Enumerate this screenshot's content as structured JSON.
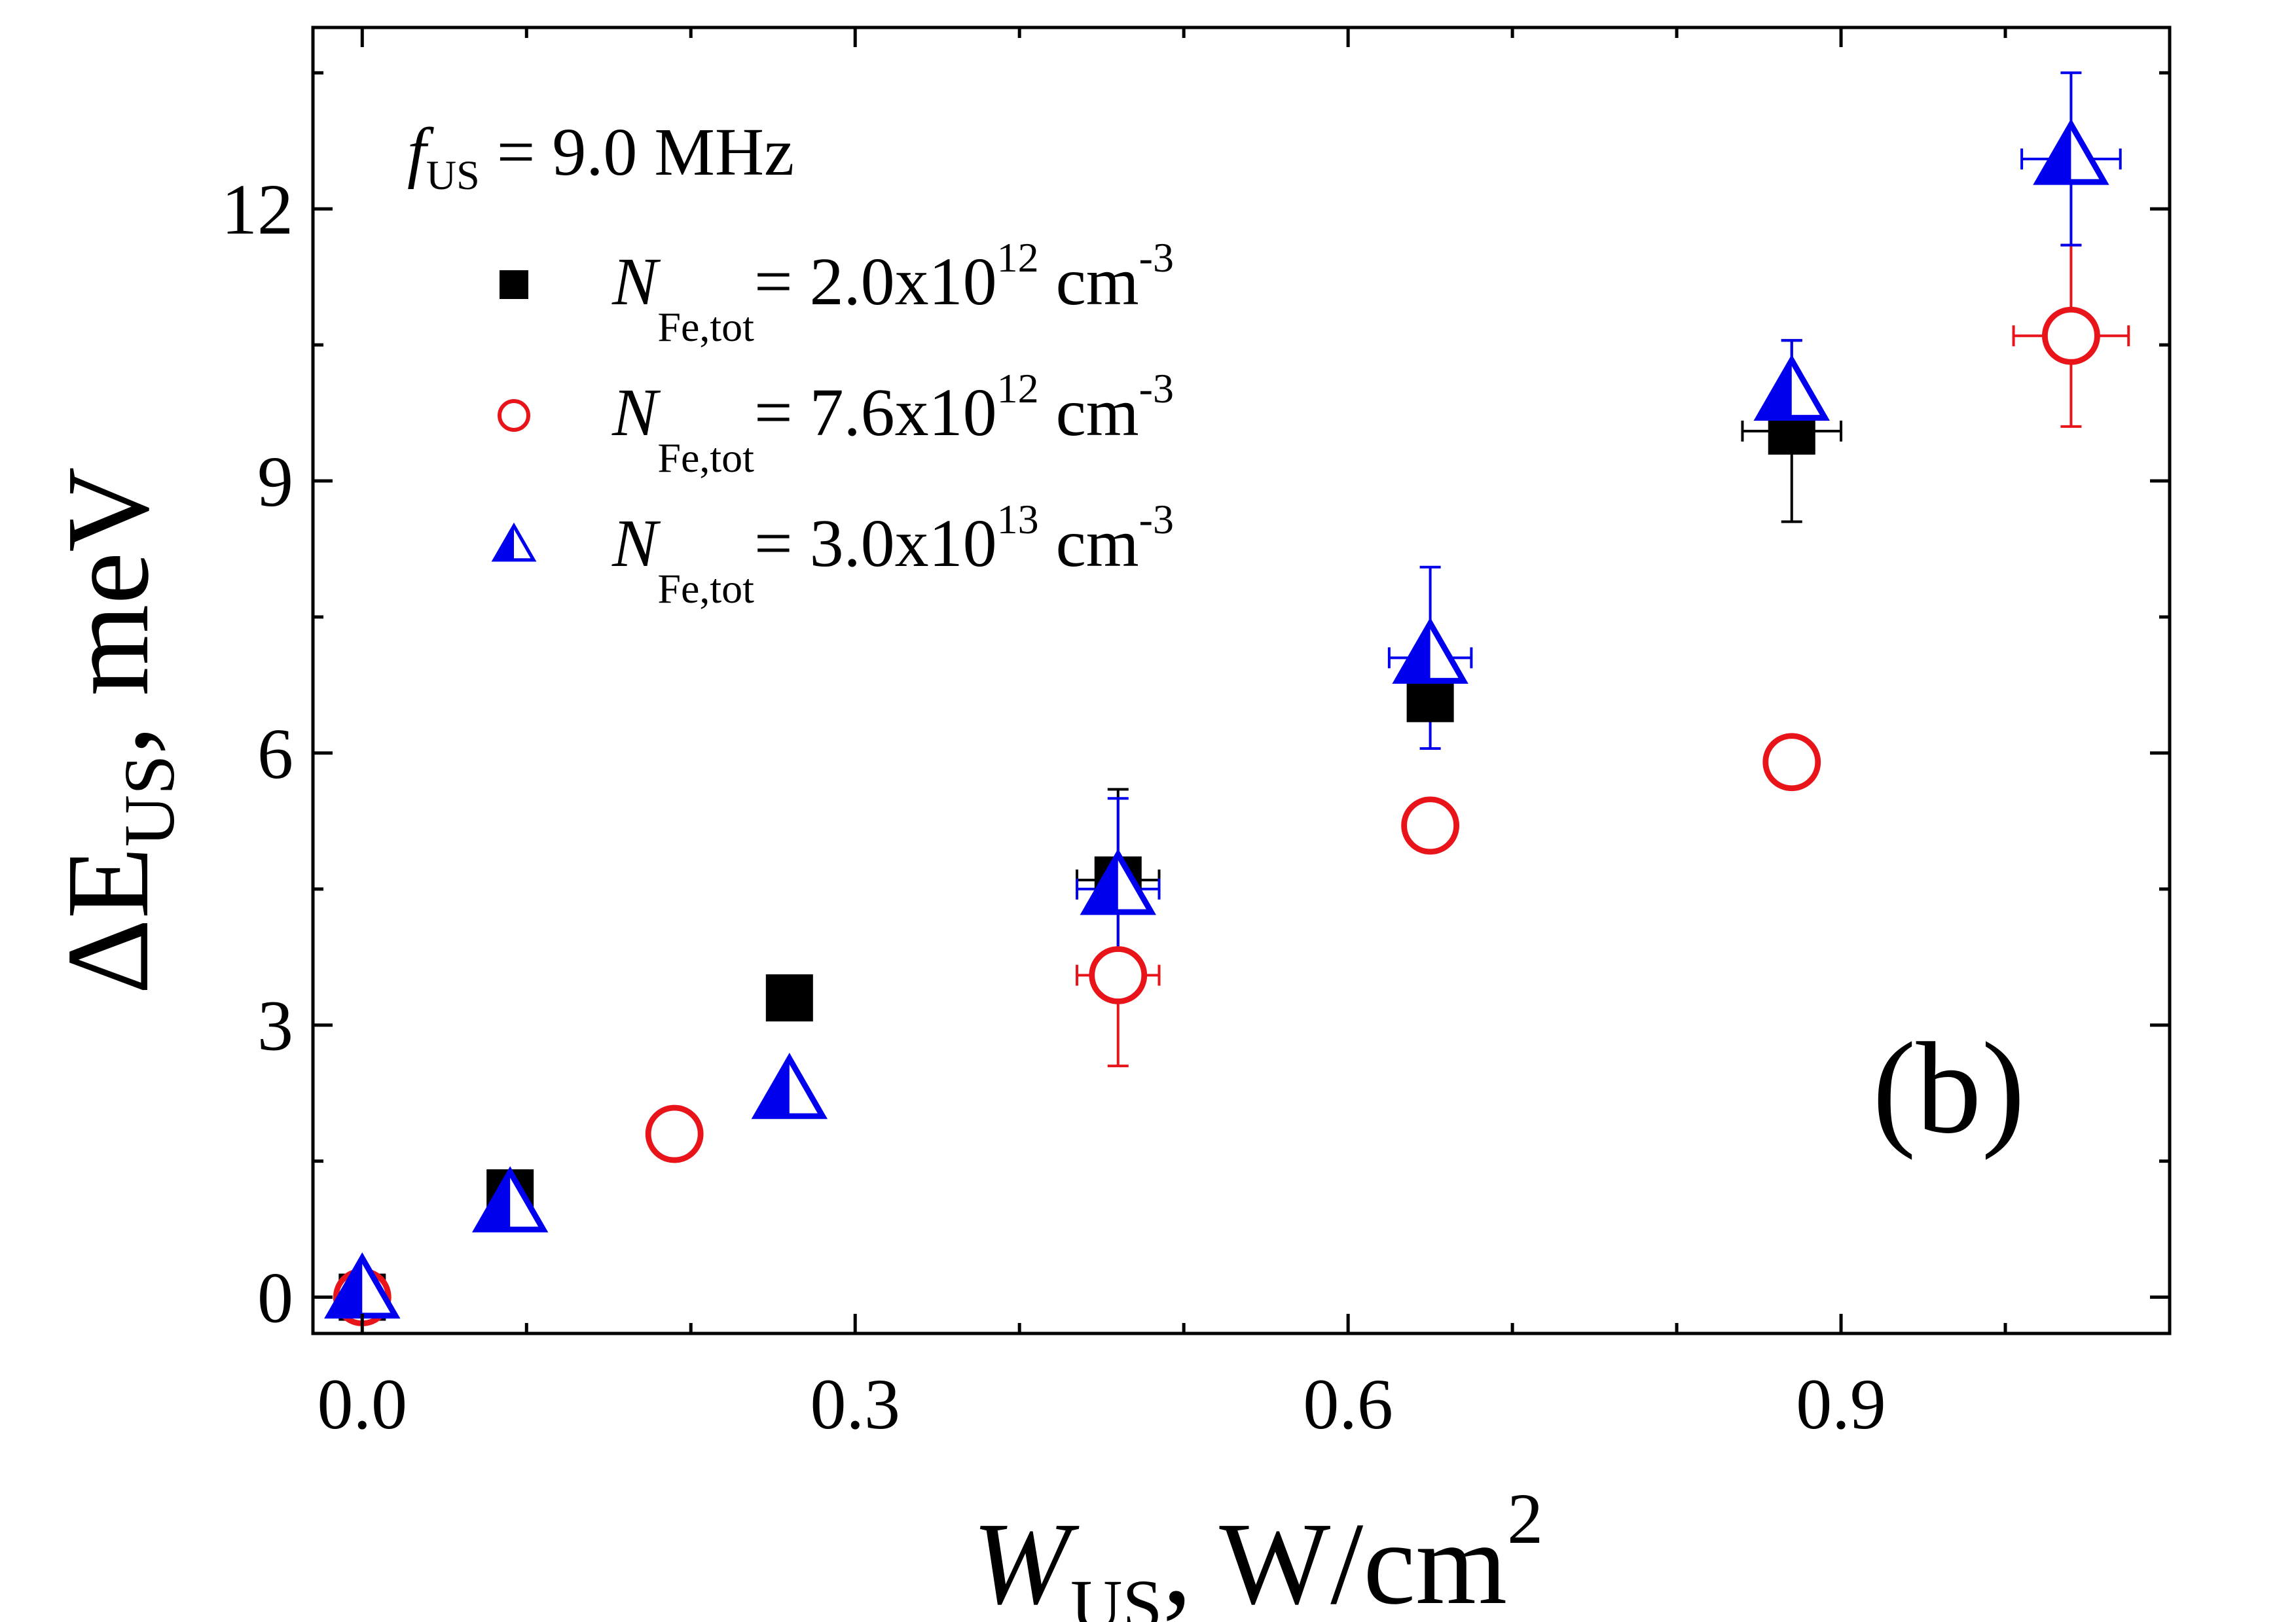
{
  "chart_data": {
    "type": "scatter",
    "panel_label": "(b)",
    "xlabel": {
      "main": "W",
      "sub": "US",
      "tail": ", W/cm",
      "sup": "2"
    },
    "ylabel": {
      "main": "ΔE",
      "sub": "US",
      "tail": ", meV"
    },
    "xlim": [
      -0.03,
      1.1
    ],
    "ylim": [
      -0.4,
      14.0
    ],
    "xticks": [
      0.0,
      0.3,
      0.6,
      0.9
    ],
    "xtick_labels": [
      "0.0",
      "0.3",
      "0.6",
      "0.9"
    ],
    "xminor": [
      0.1,
      0.2,
      0.4,
      0.5,
      0.7,
      0.8,
      1.0
    ],
    "yticks": [
      0,
      3,
      6,
      9,
      12
    ],
    "ytick_labels": [
      "0",
      "3",
      "6",
      "9",
      "12"
    ],
    "yminor": [
      1.5,
      4.5,
      7.5,
      10.5,
      13.5
    ],
    "grid": false,
    "legend_position": "top-left",
    "legend_header": {
      "main": "f",
      "sub": "US",
      "tail": " = 9.0 MHz"
    },
    "series": [
      {
        "name": {
          "main": "N",
          "sub": "Fe,tot",
          "tail": "= 2.0x10",
          "sup": "12",
          "unit": " cm",
          "unit_sup": "-3"
        },
        "marker": "square",
        "color": "#000000",
        "points": [
          {
            "x": 0.0,
            "y": 0.0
          },
          {
            "x": 0.09,
            "y": 1.15
          },
          {
            "x": 0.26,
            "y": 3.3
          },
          {
            "x": 0.46,
            "y": 4.6,
            "xerr": 0.025,
            "yerr": 1.0
          },
          {
            "x": 0.65,
            "y": 6.6
          },
          {
            "x": 0.87,
            "y": 9.55,
            "xerr": 0.03,
            "yerr": 1.0
          }
        ]
      },
      {
        "name": {
          "main": "N",
          "sub": "Fe,tot",
          "tail": "= 7.6x10",
          "sup": "12",
          "unit": " cm",
          "unit_sup": "-3"
        },
        "marker": "circle-open",
        "color": "#e8141a",
        "points": [
          {
            "x": 0.0,
            "y": 0.0
          },
          {
            "x": 0.19,
            "y": 1.8
          },
          {
            "x": 0.46,
            "y": 3.55,
            "xerr": 0.025,
            "yerr": 1.0
          },
          {
            "x": 0.65,
            "y": 5.2
          },
          {
            "x": 0.87,
            "y": 5.9
          },
          {
            "x": 1.04,
            "y": 10.6,
            "xerr": 0.035,
            "yerr": 1.0
          }
        ]
      },
      {
        "name": {
          "main": "N",
          "sub": "Fe,tot",
          "tail": "= 3.0x10",
          "sup": "13",
          "unit": " cm",
          "unit_sup": "-3"
        },
        "marker": "triangle-half",
        "color": "#0000ee",
        "points": [
          {
            "x": 0.0,
            "y": 0.05
          },
          {
            "x": 0.09,
            "y": 1.0
          },
          {
            "x": 0.26,
            "y": 2.25
          },
          {
            "x": 0.46,
            "y": 4.5,
            "xerr": 0.025,
            "yerr": 1.0
          },
          {
            "x": 0.65,
            "y": 7.05,
            "xerr": 0.025,
            "yerr": 1.0
          },
          {
            "x": 0.87,
            "y": 9.95,
            "yerr": 0.6
          },
          {
            "x": 1.04,
            "y": 12.55,
            "xerr": 0.03,
            "yerr": 0.95
          }
        ]
      }
    ]
  }
}
